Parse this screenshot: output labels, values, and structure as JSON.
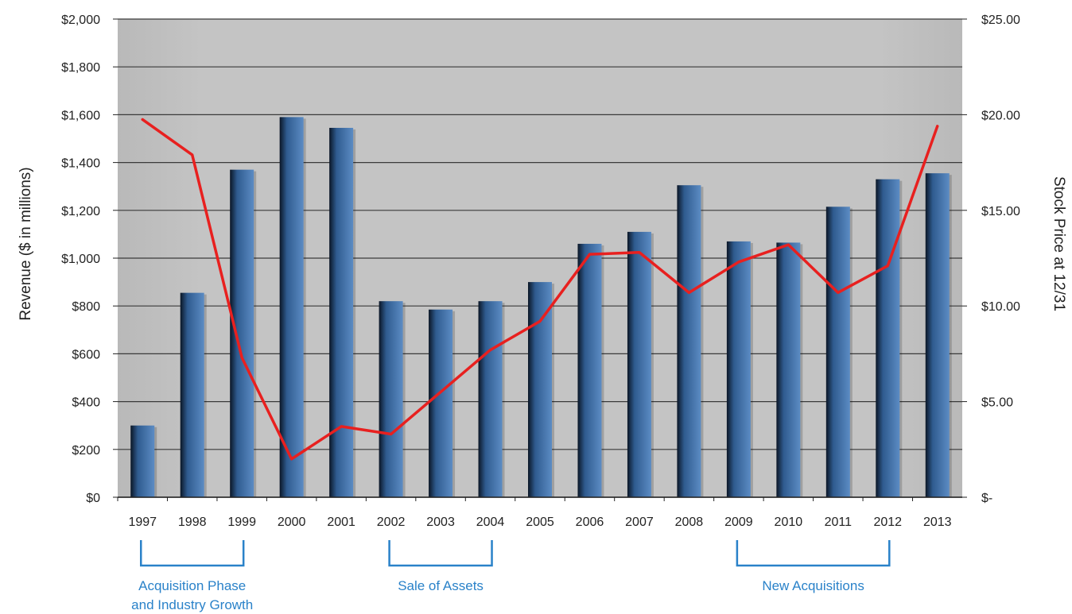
{
  "chart_data": {
    "type": "bar",
    "title": "",
    "xlabel": "",
    "ylabel": "Revenue ($ in millions)",
    "y2label": "Stock Price at 12/31",
    "categories": [
      "1997",
      "1998",
      "1999",
      "2000",
      "2001",
      "2002",
      "2003",
      "2004",
      "2005",
      "2006",
      "2007",
      "2008",
      "2009",
      "2010",
      "2011",
      "2012",
      "2013"
    ],
    "ylim": [
      0,
      2000
    ],
    "y2lim": [
      0,
      25
    ],
    "yticks": [
      0,
      200,
      400,
      600,
      800,
      1000,
      1200,
      1400,
      1600,
      1800,
      2000
    ],
    "ytick_labels": [
      "$0",
      "$200",
      "$400",
      "$600",
      "$800",
      "$1,000",
      "$1,200",
      "$1,400",
      "$1,600",
      "$1,800",
      "$2,000"
    ],
    "y2ticks": [
      0,
      5,
      10,
      15,
      20,
      25
    ],
    "y2tick_labels": [
      "$-",
      "$5.00",
      "$10.00",
      "$15.00",
      "$20.00",
      "$25.00"
    ],
    "grid": true,
    "series": [
      {
        "type": "bar",
        "axis": "left",
        "values": [
          300,
          855,
          1370,
          1590,
          1545,
          820,
          785,
          820,
          900,
          1060,
          1110,
          1305,
          1070,
          1065,
          1215,
          1330,
          1355
        ]
      },
      {
        "type": "line",
        "axis": "right",
        "values": [
          19.75,
          17.9,
          7.3,
          2.0,
          3.7,
          3.3,
          5.5,
          7.7,
          9.2,
          12.7,
          12.8,
          10.7,
          12.3,
          13.2,
          10.7,
          12.1,
          19.4
        ]
      }
    ],
    "annotations": [
      {
        "label_lines": [
          "Acquisition Phase",
          "and Industry Growth"
        ],
        "from": "1997",
        "to": "1999"
      },
      {
        "label_lines": [
          "Sale of Assets"
        ],
        "from": "2002",
        "to": "2004"
      },
      {
        "label_lines": [
          "New Acquisitions"
        ],
        "from": "2009",
        "to": "2012"
      }
    ],
    "colors": {
      "bar_light": "#5c8cc4",
      "bar_mid": "#2f5b8f",
      "bar_dark": "#0b1626",
      "line": "#e8201f",
      "plot_bg": "#b9b9b9",
      "gridline": "#3a3a3a",
      "annotation": "#2a82c9"
    }
  }
}
